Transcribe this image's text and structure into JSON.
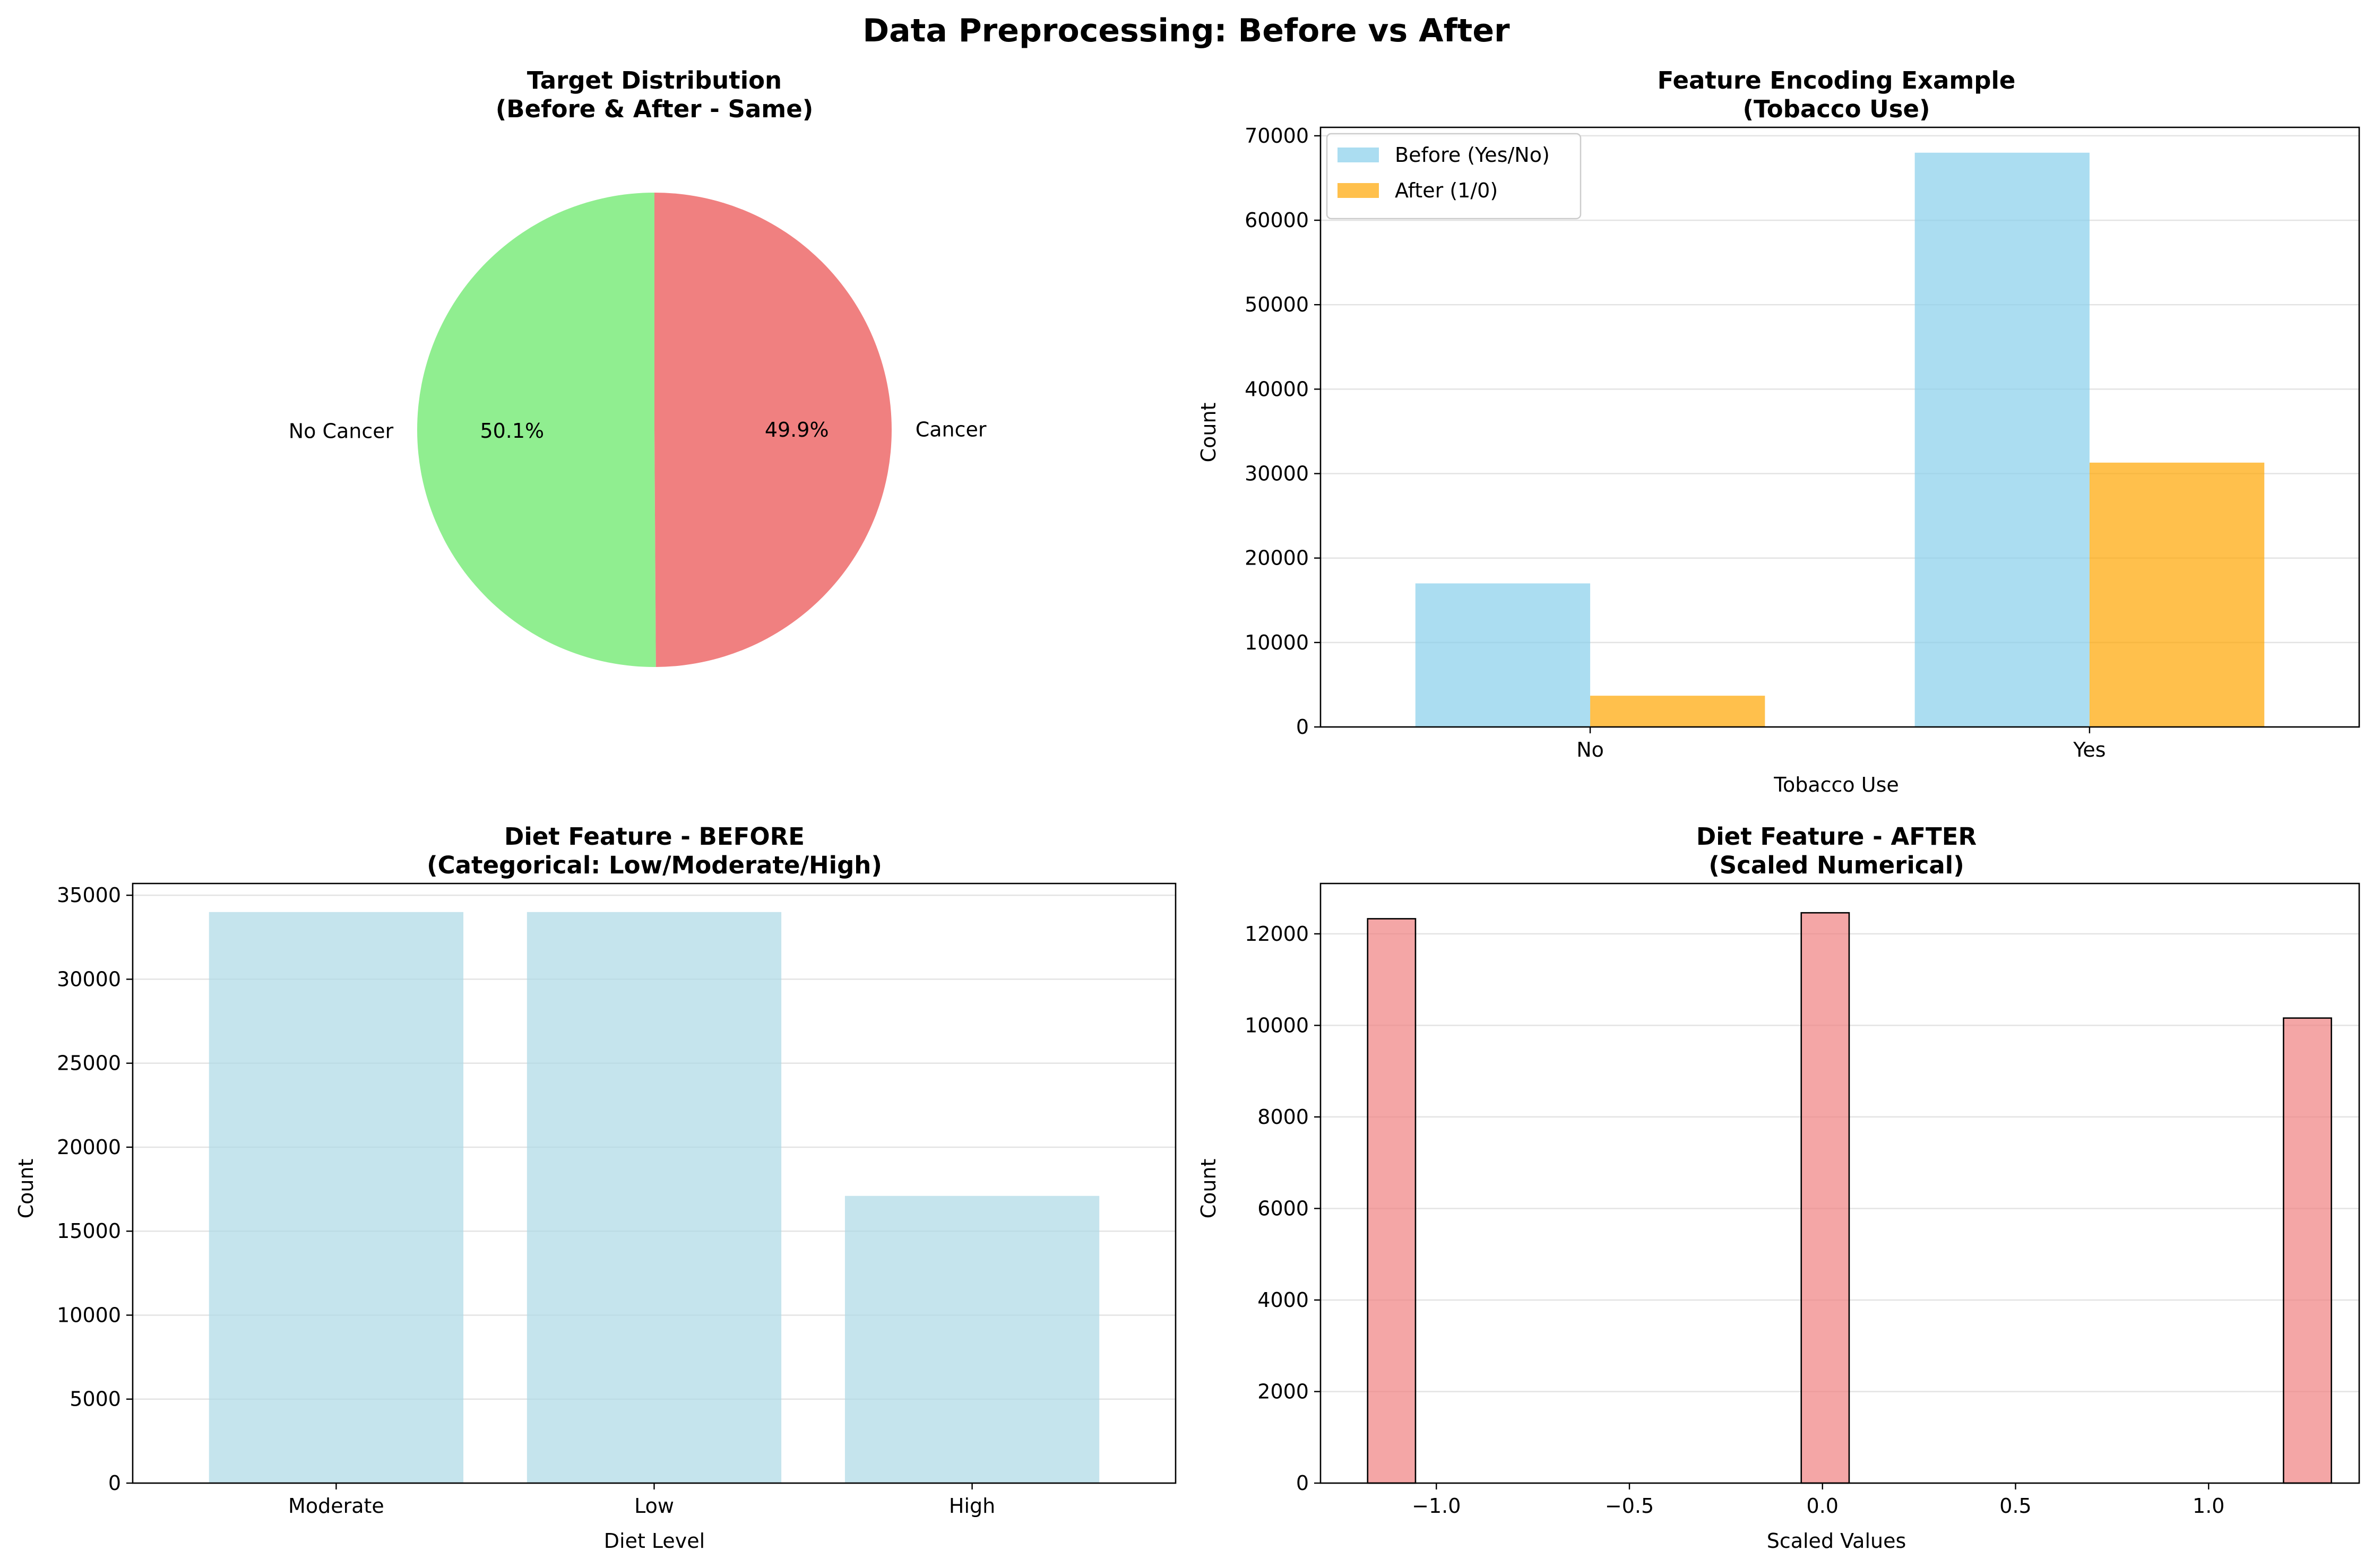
{
  "suptitle": "Data Preprocessing: Before vs After",
  "chart_data": [
    {
      "type": "pie",
      "title_line1": "Target Distribution",
      "title_line2": "(Before & After - Same)",
      "slices": [
        {
          "label": "Cancer",
          "pct": 49.9,
          "pct_label": "49.9%",
          "color": "#f08080"
        },
        {
          "label": "No Cancer",
          "pct": 50.1,
          "pct_label": "50.1%",
          "color": "#90ee90"
        }
      ]
    },
    {
      "type": "bar",
      "title_line1": "Feature Encoding Example",
      "title_line2": "(Tobacco Use)",
      "xlabel": "Tobacco Use",
      "ylabel": "Count",
      "categories": [
        "No",
        "Yes"
      ],
      "ylim": [
        0,
        71000
      ],
      "yticks": [
        0,
        10000,
        20000,
        30000,
        40000,
        50000,
        60000,
        70000
      ],
      "legend_position": "upper-left",
      "series": [
        {
          "name": "Before (Yes/No)",
          "values": [
            17000,
            68000
          ],
          "color": "#87ceeb"
        },
        {
          "name": "After (1/0)",
          "values": [
            3700,
            31300
          ],
          "color": "#ffa500"
        }
      ],
      "grid": "y"
    },
    {
      "type": "bar",
      "title_line1": "Diet Feature - BEFORE",
      "title_line2": "(Categorical: Low/Moderate/High)",
      "xlabel": "Diet Level",
      "ylabel": "Count",
      "categories": [
        "Moderate",
        "Low",
        "High"
      ],
      "values": [
        34000,
        34000,
        17100
      ],
      "ylim": [
        0,
        35700
      ],
      "yticks": [
        0,
        5000,
        10000,
        15000,
        20000,
        25000,
        30000,
        35000
      ],
      "color": "#add8e6",
      "grid": "y"
    },
    {
      "type": "bar",
      "subtype": "histogram",
      "title_line1": "Diet Feature - AFTER",
      "title_line2": "(Scaled Numerical)",
      "xlabel": "Scaled Values",
      "ylabel": "Count",
      "xlim": [
        -1.3,
        1.39
      ],
      "ylim": [
        0,
        13100
      ],
      "xticks": [
        -1.0,
        -0.5,
        0.0,
        0.5,
        1.0
      ],
      "xtick_labels": [
        "−1.0",
        "−0.5",
        "0.0",
        "0.5",
        "1.0"
      ],
      "yticks": [
        0,
        2000,
        4000,
        6000,
        8000,
        10000,
        12000
      ],
      "bins": [
        {
          "x0": -1.178,
          "x1": -1.054,
          "count": 12330
        },
        {
          "x0": -0.055,
          "x1": 0.069,
          "count": 12460
        },
        {
          "x0": 1.194,
          "x1": 1.318,
          "count": 10160
        }
      ],
      "color": "#f08080",
      "edge_color": "#000000",
      "grid": "y"
    }
  ]
}
